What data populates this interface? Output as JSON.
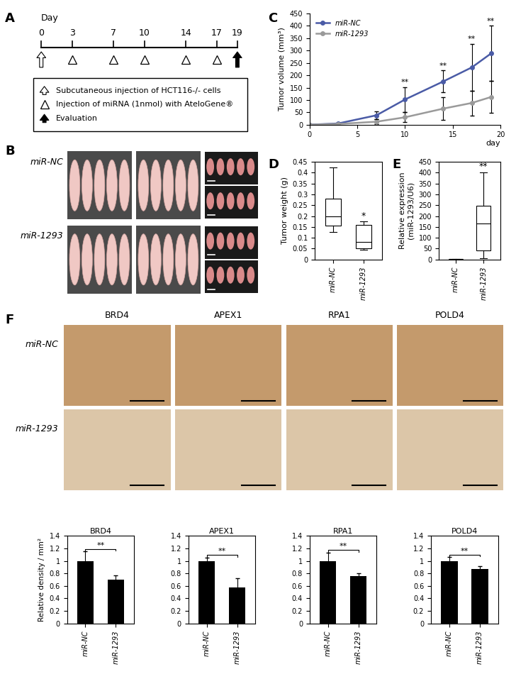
{
  "panel_labels": [
    "A",
    "B",
    "C",
    "D",
    "E",
    "F"
  ],
  "timeline": {
    "day_label": "Day",
    "days": [
      0,
      3,
      7,
      10,
      14,
      17,
      19
    ],
    "events": [
      {
        "marker": "open_arrow",
        "days": [
          0
        ],
        "text": "Subcutaneous injection of HCT116-/- cells"
      },
      {
        "marker": "triangle",
        "days": [
          3,
          7,
          10,
          14,
          17
        ],
        "text": "Injection of miRNA (1nmol) with AteloGene®"
      },
      {
        "marker": "filled_arrow",
        "days": [
          19
        ],
        "text": "Evaluation"
      }
    ]
  },
  "photos": {
    "groups": [
      "miR-NC",
      "miR-1293"
    ]
  },
  "ihc": {
    "stains": [
      "BRD4",
      "APEX1",
      "RPA1",
      "POLD4"
    ],
    "groups": [
      "miR-NC",
      "miR-1293"
    ]
  },
  "chart_data": [
    {
      "type": "line",
      "y_label": "Tumor volume (mm³)",
      "x_label": "day",
      "x": [
        0,
        3,
        7,
        10,
        14,
        17,
        19
      ],
      "xlim": [
        0,
        20
      ],
      "xticks": [
        0,
        5,
        10,
        15,
        20
      ],
      "ylim": [
        0,
        450
      ],
      "yticks": [
        0,
        50,
        100,
        150,
        200,
        250,
        300,
        350,
        400,
        450
      ],
      "legend": "upper left",
      "series": [
        {
          "name": "miR-NC",
          "color": "#4a5ba6",
          "marker": "circle",
          "values": [
            0,
            5,
            38,
            102,
            175,
            232,
            288
          ],
          "errors": [
            0,
            3,
            15,
            50,
            45,
            95,
            112
          ]
        },
        {
          "name": "miR-1293",
          "color": "#9a9a9a",
          "marker": "circle",
          "values": [
            0,
            3,
            12,
            30,
            65,
            88,
            112
          ],
          "errors": [
            0,
            2,
            10,
            20,
            45,
            50,
            65
          ]
        }
      ],
      "annotations": [
        {
          "x": 10,
          "text": "**"
        },
        {
          "x": 14,
          "text": "**"
        },
        {
          "x": 17,
          "text": "**"
        },
        {
          "x": 19,
          "text": "**"
        }
      ]
    },
    {
      "type": "box",
      "y_label": "Tumor weight (g)",
      "categories": [
        "miR-NC",
        "miR-1293"
      ],
      "ylim": [
        0,
        0.45
      ],
      "yticks": [
        0,
        0.05,
        0.1,
        0.15,
        0.2,
        0.25,
        0.3,
        0.35,
        0.4,
        0.45
      ],
      "boxes": [
        {
          "whislo": 0.125,
          "q1": 0.155,
          "med": 0.2,
          "q3": 0.28,
          "whishi": 0.425
        },
        {
          "whislo": 0.045,
          "q1": 0.05,
          "med": 0.08,
          "q3": 0.16,
          "whishi": 0.175
        }
      ],
      "annotations": [
        {
          "category": "miR-1293",
          "text": "*"
        }
      ]
    },
    {
      "type": "box",
      "y_label": "Relative expression\n(miR-1293/U6)",
      "categories": [
        "miR-NC",
        "miR-1293"
      ],
      "ylim": [
        0,
        450
      ],
      "yticks": [
        0,
        50,
        100,
        150,
        200,
        250,
        300,
        350,
        400,
        450
      ],
      "boxes": [
        {
          "whislo": 0.5,
          "q1": 1,
          "med": 1,
          "q3": 1,
          "whishi": 1.5
        },
        {
          "whislo": 5,
          "q1": 42,
          "med": 165,
          "q3": 248,
          "whishi": 402
        }
      ],
      "annotations": [
        {
          "category": "miR-1293",
          "text": "**"
        }
      ]
    },
    {
      "type": "bar",
      "title": "BRD4",
      "y_label": "Relative density / mm²",
      "categories": [
        "miR-NC",
        "miR-1293"
      ],
      "values": [
        1,
        0.7
      ],
      "errors": [
        0.15,
        0.07
      ],
      "color": "#000000",
      "ylim": [
        0,
        1.4
      ],
      "yticks": [
        0,
        0.2,
        0.4,
        0.6,
        0.8,
        1,
        1.2,
        1.4
      ],
      "annotations": [
        {
          "text": "**"
        }
      ]
    },
    {
      "type": "bar",
      "title": "APEX1",
      "categories": [
        "miR-NC",
        "miR-1293"
      ],
      "values": [
        1,
        0.57
      ],
      "errors": [
        0.05,
        0.15
      ],
      "color": "#000000",
      "ylim": [
        0,
        1.4
      ],
      "yticks": [
        0,
        0.2,
        0.4,
        0.6,
        0.8,
        1,
        1.2,
        1.4
      ],
      "annotations": [
        {
          "text": "**"
        }
      ]
    },
    {
      "type": "bar",
      "title": "RPA1",
      "categories": [
        "miR-NC",
        "miR-1293"
      ],
      "values": [
        1,
        0.76
      ],
      "errors": [
        0.13,
        0.04
      ],
      "color": "#000000",
      "ylim": [
        0,
        1.4
      ],
      "yticks": [
        0,
        0.2,
        0.4,
        0.6,
        0.8,
        1,
        1.2,
        1.4
      ],
      "annotations": [
        {
          "text": "**"
        }
      ]
    },
    {
      "type": "bar",
      "title": "POLD4",
      "categories": [
        "miR-NC",
        "miR-1293"
      ],
      "values": [
        1,
        0.87
      ],
      "errors": [
        0.06,
        0.04
      ],
      "color": "#000000",
      "ylim": [
        0,
        1.4
      ],
      "yticks": [
        0,
        0.2,
        0.4,
        0.6,
        0.8,
        1,
        1.2,
        1.4
      ],
      "annotations": [
        {
          "text": "**"
        }
      ]
    }
  ]
}
